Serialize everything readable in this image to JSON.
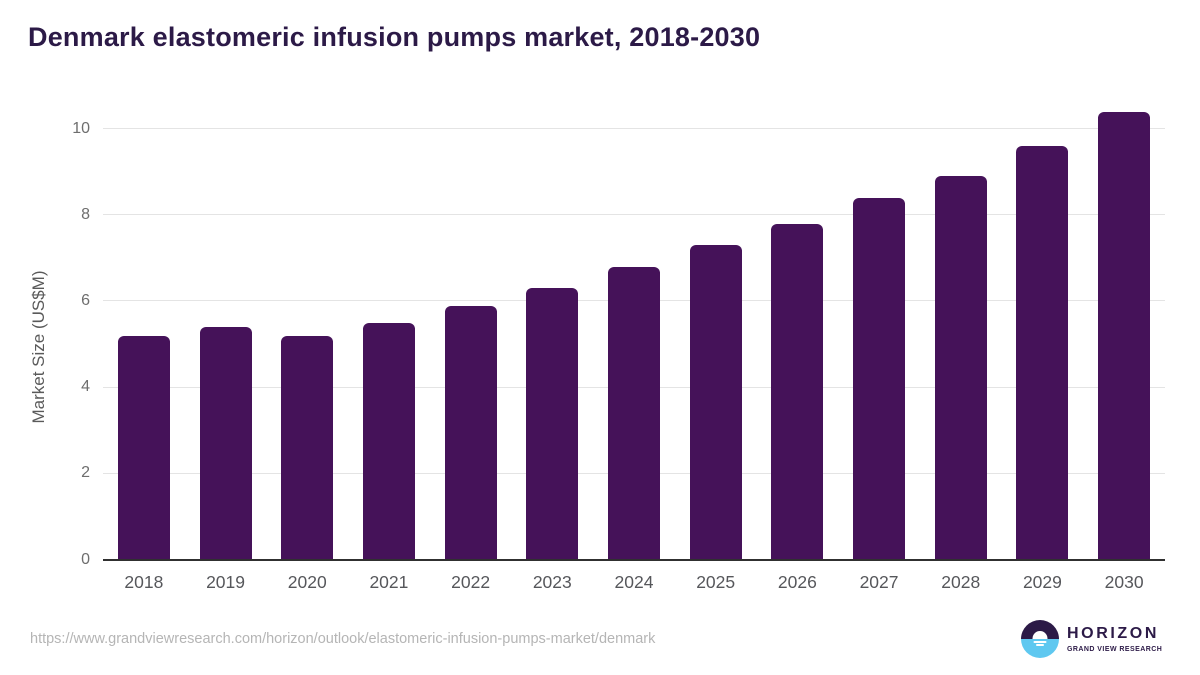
{
  "chart_data": {
    "type": "bar",
    "title": "Denmark elastomeric infusion pumps market, 2018-2030",
    "categories": [
      "2018",
      "2019",
      "2020",
      "2021",
      "2022",
      "2023",
      "2024",
      "2025",
      "2026",
      "2027",
      "2028",
      "2029",
      "2030"
    ],
    "values": [
      5.2,
      5.4,
      5.2,
      5.5,
      5.9,
      6.3,
      6.8,
      7.3,
      7.8,
      8.4,
      8.9,
      9.6,
      10.4
    ],
    "xlabel": "",
    "ylabel": "Market Size (US$M)",
    "ylim": [
      0,
      10
    ],
    "yticks": [
      0,
      2,
      4,
      6,
      8,
      10
    ],
    "grid": true,
    "legend_position": "none",
    "bar_color": "#451259"
  },
  "footer": {
    "source_url": "https://www.grandviewresearch.com/horizon/outlook/elastomeric-infusion-pumps-market/denmark"
  },
  "logo": {
    "wordmark": "HORIZON",
    "tagline": "GRAND VIEW RESEARCH"
  },
  "colors": {
    "bar": "#451259",
    "title_text": "#2C1A47",
    "axis_line": "#303030",
    "gridline": "#E4E4E4",
    "y_tick_text": "#6E6E6E",
    "x_tick_text": "#56575B",
    "url_text": "#B5B5B5",
    "logo_purple": "#2C1A47",
    "logo_blue": "#5FC8F0"
  }
}
